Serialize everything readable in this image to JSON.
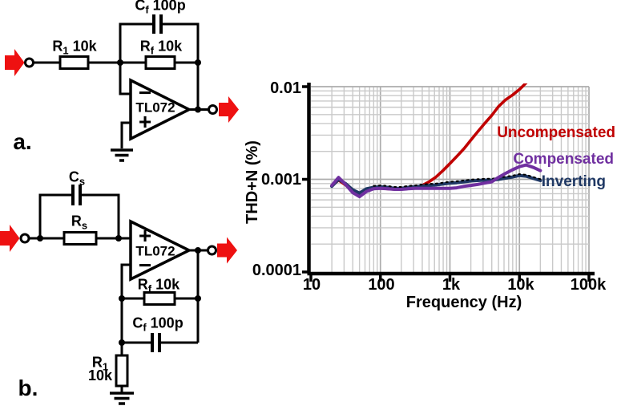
{
  "figure": {
    "panels": {
      "a": "a.",
      "b": "b."
    },
    "circuit_a": {
      "r1": {
        "sym": "R",
        "sub": "1",
        "val": "10k"
      },
      "rf": {
        "sym": "R",
        "sub": "f",
        "val": "10k"
      },
      "cf": {
        "sym": "C",
        "sub": "f",
        "val": "100p"
      },
      "opamp": "TL072",
      "inverting_input": "−",
      "noninverting_input": "+"
    },
    "circuit_b": {
      "cs": {
        "sym": "C",
        "sub": "s",
        "val": ""
      },
      "rs": {
        "sym": "R",
        "sub": "s",
        "val": ""
      },
      "rf": {
        "sym": "R",
        "sub": "f",
        "val": "10k"
      },
      "cf": {
        "sym": "C",
        "sub": "f",
        "val": "100p"
      },
      "r1": {
        "sym": "R",
        "sub": "1",
        "val": "10k"
      },
      "opamp": "TL072",
      "inverting_input": "−",
      "noninverting_input": "+"
    },
    "arrow_color": "#ee1111"
  },
  "chart_data": {
    "type": "line",
    "title": "",
    "xlabel": "Frequency (Hz)",
    "ylabel": "THD+N (%)",
    "x_scale": "log",
    "y_scale": "log",
    "xlim": [
      10,
      100000
    ],
    "ylim": [
      0.0001,
      0.01
    ],
    "x_tick_labels": [
      "10",
      "100",
      "1k",
      "10k",
      "100k"
    ],
    "y_tick_labels": [
      "0.01",
      "0.001",
      "0.0001"
    ],
    "grid": true,
    "grid_color_major": "#adadad",
    "grid_color_minor": "#c9c9c9",
    "legend_position": "inline-right",
    "series": [
      {
        "name": "Uncompensated",
        "color": "#c00000",
        "x": [
          20,
          25,
          31.5,
          40,
          50,
          63,
          80,
          100,
          125,
          160,
          200,
          250,
          315,
          400,
          500,
          630,
          800,
          1000,
          1250,
          1600,
          2000,
          2500,
          3150,
          4000,
          5000,
          6300,
          8000,
          10000,
          12500
        ],
        "y": [
          0.00085,
          0.00098,
          0.00087,
          0.00074,
          0.0007,
          0.00077,
          0.0008,
          0.0008,
          0.00079,
          0.00078,
          0.00078,
          0.0008,
          0.00082,
          0.00086,
          0.00094,
          0.00106,
          0.00125,
          0.00148,
          0.00176,
          0.00215,
          0.00265,
          0.00325,
          0.004,
          0.0049,
          0.0061,
          0.0072,
          0.00815,
          0.00935,
          0.011
        ]
      },
      {
        "name": "Compensated",
        "color": "#7030a0",
        "x": [
          20,
          25,
          31.5,
          40,
          50,
          63,
          80,
          100,
          125,
          160,
          200,
          250,
          315,
          400,
          500,
          630,
          800,
          1000,
          1250,
          1600,
          2000,
          2500,
          3150,
          4000,
          5000,
          6300,
          8000,
          10000,
          12500,
          16000,
          20000
        ],
        "y": [
          0.00086,
          0.00105,
          0.00088,
          0.00072,
          0.00065,
          0.00074,
          0.00079,
          0.0008,
          0.00079,
          0.00078,
          0.00078,
          0.00079,
          0.0008,
          0.0008,
          0.0008,
          0.0008,
          0.0008,
          0.0008,
          0.00081,
          0.00084,
          0.00086,
          0.00088,
          0.00091,
          0.00094,
          0.00105,
          0.00116,
          0.00127,
          0.00137,
          0.00143,
          0.00134,
          0.00124
        ]
      },
      {
        "name": "Inverting",
        "color": "#1f3864",
        "black_dotted_overlay": true,
        "x": [
          20,
          25,
          31.5,
          40,
          50,
          63,
          80,
          100,
          125,
          160,
          200,
          250,
          315,
          400,
          500,
          630,
          800,
          1000,
          1250,
          1600,
          2000,
          2500,
          3150,
          4000,
          5000,
          6300,
          8000,
          10000,
          12500,
          16000,
          20000
        ],
        "y": [
          0.00084,
          0.001,
          0.0009,
          0.00077,
          0.00071,
          0.00079,
          0.00082,
          0.00083,
          0.00082,
          0.0008,
          0.0008,
          0.00082,
          0.00083,
          0.00085,
          0.00086,
          0.00087,
          0.00089,
          0.00091,
          0.00092,
          0.00094,
          0.00096,
          0.00097,
          0.00098,
          0.00098,
          0.001,
          0.00103,
          0.00106,
          0.0011,
          0.00108,
          0.00102,
          0.00097
        ]
      }
    ]
  }
}
